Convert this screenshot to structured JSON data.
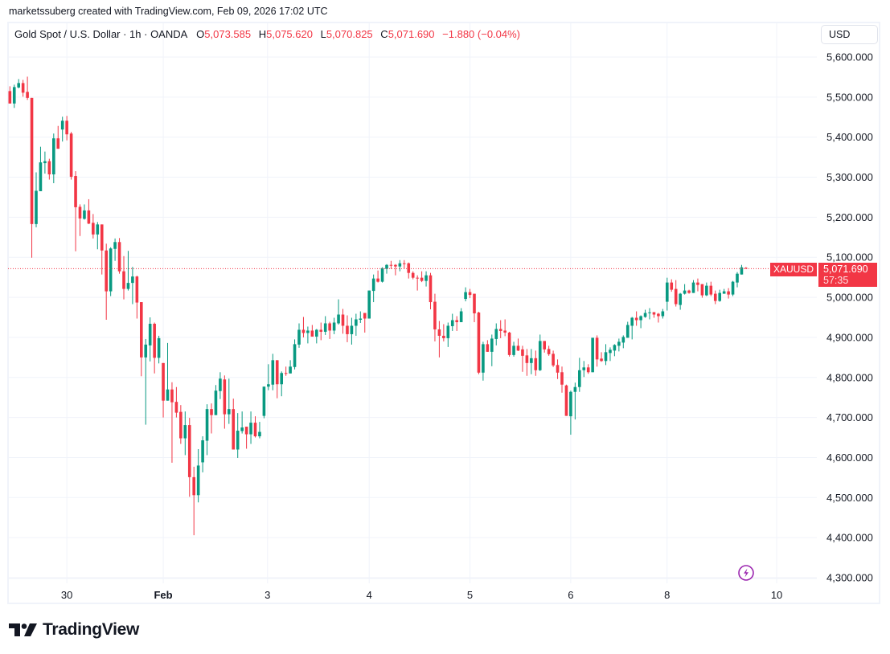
{
  "attribution": "marketssuberg created with TradingView.com, Feb 09, 2026 17:02 UTC",
  "legend": {
    "symbol_title": "Gold Spot / U.S. Dollar · 1h · OANDA",
    "open_label": "O",
    "open": "5,073.585",
    "high_label": "H",
    "high": "5,075.620",
    "low_label": "L",
    "low": "5,070.825",
    "close_label": "C",
    "close": "5,071.690",
    "change": "−1.880 (−0.04%)"
  },
  "currency_button": "USD",
  "last_price": {
    "symbol": "XAUUSD",
    "price": "5,071.690",
    "countdown": "57:35",
    "value": 5071.69
  },
  "logo_text": "TradingView",
  "icons": {
    "logo": "tradingview-logo-icon",
    "alert": "lightning-icon"
  },
  "colors": {
    "up": "#089981",
    "down": "#f23645",
    "last_price": "#f23645",
    "alert_icon": "#9c27b0",
    "grid": "#f0f3fa"
  },
  "chart_data": {
    "type": "candlestick",
    "interval": "1h",
    "y_range": [
      4300,
      5600
    ],
    "grid": true,
    "y_ticks": [
      "5,600.000",
      "5,500.000",
      "5,400.000",
      "5,300.000",
      "5,200.000",
      "5,100.000",
      "5,000.000",
      "4,900.000",
      "4,800.000",
      "4,700.000",
      "4,600.000",
      "4,500.000",
      "4,400.000",
      "4,300.000"
    ],
    "y_tick_values": [
      5600,
      5500,
      5400,
      5300,
      5200,
      5100,
      5000,
      4900,
      4800,
      4700,
      4600,
      4500,
      4400,
      4300
    ],
    "x_ticks": [
      "30",
      "Feb",
      "3",
      "4",
      "5",
      "6",
      "8",
      "10"
    ],
    "ohlc_columns": [
      "open",
      "high",
      "low",
      "close"
    ],
    "candles": [
      [
        5515,
        5527,
        5484,
        5484
      ],
      [
        5484,
        5531,
        5473,
        5525
      ],
      [
        5524,
        5545,
        5522,
        5535
      ],
      [
        5535,
        5543,
        5501,
        5511
      ],
      [
        5513,
        5551,
        5493,
        5498
      ],
      [
        5498,
        5498,
        5099,
        5183
      ],
      [
        5183,
        5312,
        5175,
        5266
      ],
      [
        5265,
        5376,
        5265,
        5337
      ],
      [
        5335,
        5364,
        5309,
        5340
      ],
      [
        5340,
        5346,
        5294,
        5307
      ],
      [
        5307,
        5409,
        5285,
        5397
      ],
      [
        5397,
        5428,
        5371,
        5371
      ],
      [
        5419,
        5451,
        5389,
        5441
      ],
      [
        5441,
        5453,
        5392,
        5407
      ],
      [
        5409,
        5413,
        5294,
        5301
      ],
      [
        5303,
        5315,
        5115,
        5225
      ],
      [
        5226,
        5232,
        5153,
        5197
      ],
      [
        5196,
        5232,
        5194,
        5217
      ],
      [
        5217,
        5245,
        5183,
        5184
      ],
      [
        5186,
        5208,
        5147,
        5157
      ],
      [
        5157,
        5188,
        5120,
        5182
      ],
      [
        5182,
        5182,
        5057,
        5117
      ],
      [
        5117,
        5134,
        4944,
        5015
      ],
      [
        5015,
        5125,
        5003,
        5122
      ],
      [
        5121,
        5147,
        5091,
        5138
      ],
      [
        5138,
        5148,
        5059,
        5065
      ],
      [
        5065,
        5103,
        4995,
        5021
      ],
      [
        5021,
        5116,
        5017,
        5036
      ],
      [
        5036,
        5076,
        4983,
        5052
      ],
      [
        5052,
        5054,
        4947,
        4987
      ],
      [
        4988,
        4988,
        4803,
        4850
      ],
      [
        4850,
        4896,
        4682,
        4882
      ],
      [
        4880,
        4950,
        4840,
        4934
      ],
      [
        4934,
        4937,
        4810,
        4849
      ],
      [
        4849,
        4904,
        4835,
        4898
      ],
      [
        4836,
        4836,
        4700,
        4742
      ],
      [
        4742,
        4886,
        4742,
        4770
      ],
      [
        4770,
        4788,
        4587,
        4738
      ],
      [
        4739,
        4776,
        4700,
        4712
      ],
      [
        4714,
        4731,
        4634,
        4648
      ],
      [
        4648,
        4715,
        4606,
        4681
      ],
      [
        4681,
        4699,
        4502,
        4551
      ],
      [
        4551,
        4577,
        4406,
        4506
      ],
      [
        4506,
        4621,
        4488,
        4580
      ],
      [
        4588,
        4653,
        4563,
        4643
      ],
      [
        4642,
        4733,
        4606,
        4721
      ],
      [
        4721,
        4735,
        4660,
        4706
      ],
      [
        4706,
        4781,
        4706,
        4767
      ],
      [
        4766,
        4813,
        4746,
        4797
      ],
      [
        4795,
        4805,
        4672,
        4708
      ],
      [
        4708,
        4797,
        4684,
        4721
      ],
      [
        4721,
        4747,
        4620,
        4620
      ],
      [
        4620,
        4711,
        4599,
        4667
      ],
      [
        4666,
        4715,
        4660,
        4675
      ],
      [
        4677,
        4677,
        4622,
        4658
      ],
      [
        4658,
        4715,
        4634,
        4687
      ],
      [
        4687,
        4703,
        4650,
        4653
      ],
      [
        4653,
        4689,
        4648,
        4664
      ],
      [
        4704,
        4777,
        4698,
        4777
      ],
      [
        4777,
        4833,
        4768,
        4783
      ],
      [
        4782,
        4859,
        4768,
        4843
      ],
      [
        4843,
        4843,
        4748,
        4783
      ],
      [
        4783,
        4815,
        4753,
        4811
      ],
      [
        4811,
        4827,
        4804,
        4810
      ],
      [
        4810,
        4843,
        4810,
        4827
      ],
      [
        4826,
        4895,
        4820,
        4883
      ],
      [
        4882,
        4935,
        4874,
        4919
      ],
      [
        4919,
        4951,
        4900,
        4911
      ],
      [
        4911,
        4927,
        4885,
        4917
      ],
      [
        4917,
        4931,
        4902,
        4902
      ],
      [
        4902,
        4921,
        4885,
        4919
      ],
      [
        4919,
        4937,
        4893,
        4914
      ],
      [
        4914,
        4953,
        4906,
        4935
      ],
      [
        4935,
        4939,
        4896,
        4917
      ],
      [
        4917,
        4949,
        4908,
        4937
      ],
      [
        4935,
        4995,
        4932,
        4957
      ],
      [
        4957,
        4971,
        4909,
        4929
      ],
      [
        4929,
        4955,
        4888,
        4908
      ],
      [
        4908,
        4949,
        4882,
        4929
      ],
      [
        4929,
        4959,
        4904,
        4945
      ],
      [
        4944,
        4965,
        4936,
        4947
      ],
      [
        4961,
        4961,
        4912,
        4947
      ],
      [
        4947,
        5017,
        4947,
        5017
      ],
      [
        5016,
        5057,
        4988,
        5047
      ],
      [
        5047,
        5067,
        5037,
        5039
      ],
      [
        5039,
        5075,
        5037,
        5073
      ],
      [
        5071,
        5083,
        5059,
        5081
      ],
      [
        5081,
        5091,
        5071,
        5080.5
      ],
      [
        5081,
        5083,
        5055,
        5077
      ],
      [
        5077,
        5093,
        5065,
        5085
      ],
      [
        5085,
        5093,
        5071,
        5084.5
      ],
      [
        5085,
        5087,
        5047,
        5061
      ],
      [
        5061,
        5065,
        5045,
        5049
      ],
      [
        5049,
        5055,
        5017,
        5048.5
      ],
      [
        5049,
        5065,
        5038,
        5041
      ],
      [
        5041,
        5065,
        5027,
        5055
      ],
      [
        5055,
        5061,
        4970,
        4988
      ],
      [
        4989,
        5009,
        4890,
        4920
      ],
      [
        4920,
        4941,
        4850,
        4904
      ],
      [
        4904,
        4933,
        4890,
        4898
      ],
      [
        4898,
        4937,
        4876,
        4929
      ],
      [
        4928,
        4959,
        4916,
        4943
      ],
      [
        4943,
        4953,
        4916,
        4938
      ],
      [
        4938,
        4973,
        4938,
        4965
      ],
      [
        4996,
        5025,
        4990,
        5013
      ],
      [
        5013,
        5021,
        4998,
        5006
      ],
      [
        5009,
        5009,
        4938,
        4960
      ],
      [
        4962,
        4964,
        4808,
        4812
      ],
      [
        4812,
        4889,
        4792,
        4883
      ],
      [
        4883,
        4893,
        4864,
        4864
      ],
      [
        4864,
        4907,
        4828,
        4897
      ],
      [
        4896,
        4935,
        4880,
        4921
      ],
      [
        4921,
        4943,
        4898,
        4916
      ],
      [
        4917,
        4945,
        4903,
        4912
      ],
      [
        4912,
        4914,
        4852,
        4856
      ],
      [
        4856,
        4889,
        4852,
        4879
      ],
      [
        4879,
        4897,
        4866,
        4867
      ],
      [
        4870,
        4879,
        4814,
        4854
      ],
      [
        4855,
        4871,
        4804,
        4836
      ],
      [
        4836,
        4871,
        4808,
        4848
      ],
      [
        4848,
        4867,
        4804,
        4818
      ],
      [
        4818,
        4907,
        4816,
        4891
      ],
      [
        4891,
        4891,
        4862,
        4870
      ],
      [
        4871,
        4879,
        4854,
        4858
      ],
      [
        4859,
        4867,
        4826,
        4830
      ],
      [
        4831,
        4845,
        4796,
        4812
      ],
      [
        4813,
        4827,
        4762,
        4782
      ],
      [
        4780,
        4782,
        4704,
        4704
      ],
      [
        4703,
        4767,
        4657,
        4764
      ],
      [
        4764,
        4787,
        4695,
        4776
      ],
      [
        4776,
        4849,
        4764,
        4818
      ],
      [
        4818,
        4841,
        4801,
        4825
      ],
      [
        4825,
        4833,
        4809,
        4813
      ],
      [
        4813,
        4899,
        4813,
        4899
      ],
      [
        4899,
        4905,
        4827,
        4845
      ],
      [
        4847,
        4863,
        4839,
        4841
      ],
      [
        4841,
        4883,
        4831,
        4863
      ],
      [
        4861,
        4875,
        4841,
        4869
      ],
      [
        4867,
        4883,
        4853,
        4881
      ],
      [
        4879,
        4897,
        4865,
        4889
      ],
      [
        4887,
        4905,
        4873,
        4901
      ],
      [
        4899,
        4939,
        4899,
        4931
      ],
      [
        4929,
        4951,
        4895,
        4949
      ],
      [
        4949,
        4965,
        4929,
        4943
      ],
      [
        4943,
        4955,
        4923,
        4953
      ],
      [
        4951,
        4969,
        4949,
        4961
      ],
      [
        4962,
        4973,
        4945,
        4962.5
      ],
      [
        4963,
        4963,
        4949,
        4957
      ],
      [
        4959,
        4961,
        4937,
        4953
      ],
      [
        4953,
        4971,
        4947,
        4965
      ],
      [
        4989,
        5049,
        4967,
        5037
      ],
      [
        5037,
        5045,
        5014,
        5019
      ],
      [
        5021,
        5043,
        4977,
        4983
      ],
      [
        4981,
        5011,
        4969,
        5009
      ],
      [
        5009,
        5033,
        5007,
        5017
      ],
      [
        5017,
        5019,
        5009,
        5011
      ],
      [
        5011,
        5043,
        5011,
        5037
      ],
      [
        5037,
        5047,
        5015,
        5031
      ],
      [
        5033,
        5033,
        4999,
        5005
      ],
      [
        5005,
        5037,
        5003,
        5029
      ],
      [
        5029,
        5039,
        5003,
        5007
      ],
      [
        5009,
        5017,
        4983,
        4991
      ],
      [
        4991,
        5019,
        4989,
        5011
      ],
      [
        5009,
        5021,
        5009,
        5015
      ],
      [
        5015,
        5023,
        4997,
        5007
      ],
      [
        5007,
        5041,
        5003,
        5039
      ],
      [
        5037,
        5063,
        5025,
        5059
      ],
      [
        5057,
        5081,
        5057,
        5075
      ],
      [
        5073.585,
        5075.62,
        5070.825,
        5071.69
      ]
    ]
  }
}
